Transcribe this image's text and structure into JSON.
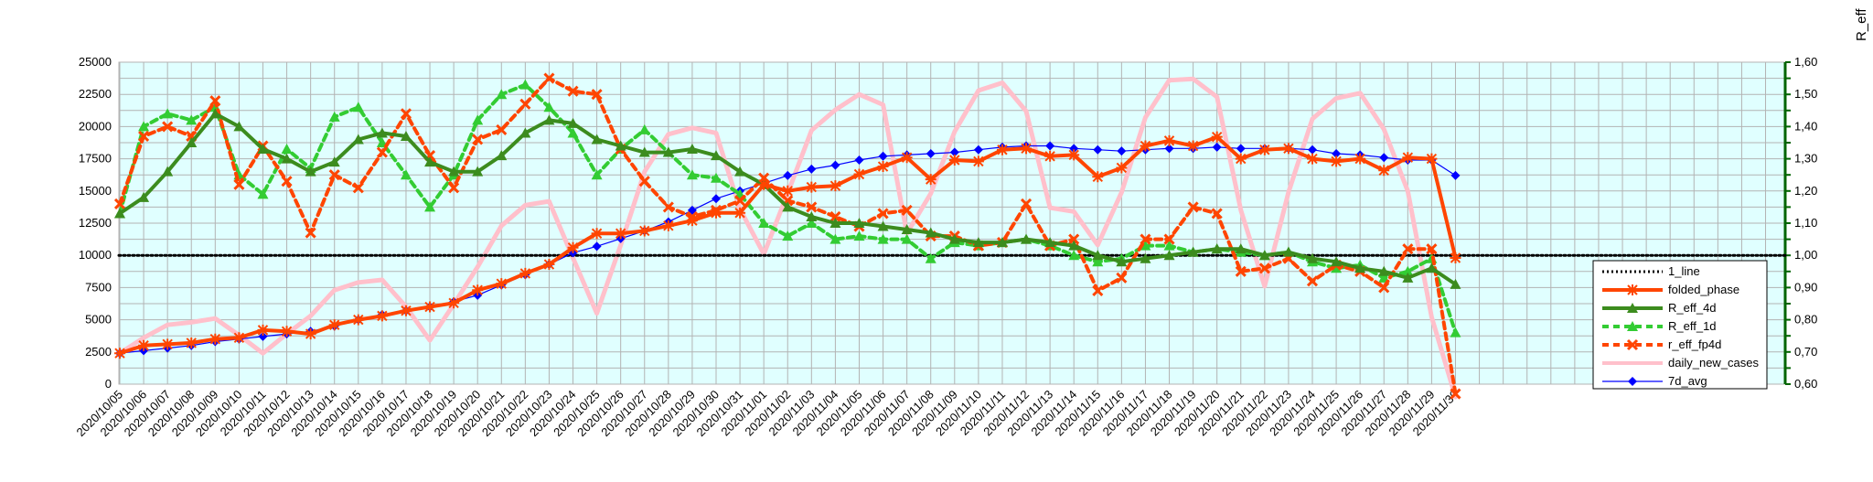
{
  "chart_data": {
    "type": "line",
    "y2label": "R_eff",
    "ylim": [
      0,
      25000
    ],
    "y2lim": [
      0.6,
      1.6
    ],
    "yticks": [
      "0",
      "2500",
      "5000",
      "7500",
      "10000",
      "12500",
      "15000",
      "17500",
      "20000",
      "22500",
      "25000"
    ],
    "y2ticks": [
      "0,60",
      "0,70",
      "0,80",
      "0,90",
      "1,00",
      "1,10",
      "1,20",
      "1,30",
      "1,40",
      "1,50",
      "1,60"
    ],
    "grid": true,
    "legend_position": "right",
    "categories": [
      "2020/10/05",
      "2020/10/06",
      "2020/10/07",
      "2020/10/08",
      "2020/10/09",
      "2020/10/10",
      "2020/10/11",
      "2020/10/12",
      "2020/10/13",
      "2020/10/14",
      "2020/10/15",
      "2020/10/16",
      "2020/10/17",
      "2020/10/18",
      "2020/10/19",
      "2020/10/20",
      "2020/10/21",
      "2020/10/22",
      "2020/10/23",
      "2020/10/24",
      "2020/10/25",
      "2020/10/26",
      "2020/10/27",
      "2020/10/28",
      "2020/10/29",
      "2020/10/30",
      "2020/10/31",
      "2020/11/01",
      "2020/11/02",
      "2020/11/03",
      "2020/11/04",
      "2020/11/05",
      "2020/11/06",
      "2020/11/07",
      "2020/11/08",
      "2020/11/09",
      "2020/11/10",
      "2020/11/11",
      "2020/11/12",
      "2020/11/13",
      "2020/11/14",
      "2020/11/15",
      "2020/11/16",
      "2020/11/17",
      "2020/11/18",
      "2020/11/19",
      "2020/11/20",
      "2020/11/21",
      "2020/11/22",
      "2020/11/23",
      "2020/11/24",
      "2020/11/25",
      "2020/11/26",
      "2020/11/27",
      "2020/11/28",
      "2020/11/29",
      "2020/11/30"
    ],
    "series": [
      {
        "name": "1_line",
        "axis": "right",
        "color": "#000000",
        "style": "dotted",
        "marker": "none",
        "values": [
          1,
          1,
          1,
          1,
          1,
          1,
          1,
          1,
          1,
          1,
          1,
          1,
          1,
          1,
          1,
          1,
          1,
          1,
          1,
          1,
          1,
          1,
          1,
          1,
          1,
          1,
          1,
          1,
          1,
          1,
          1,
          1,
          1,
          1,
          1,
          1,
          1,
          1,
          1,
          1,
          1,
          1,
          1,
          1,
          1,
          1,
          1,
          1,
          1,
          1,
          1,
          1,
          1,
          1,
          1,
          1,
          1
        ]
      },
      {
        "name": "folded_phase",
        "axis": "left",
        "color": "#ff4500",
        "style": "solid",
        "marker": "star",
        "values": [
          2400,
          3000,
          3100,
          3200,
          3500,
          3600,
          4200,
          4100,
          3900,
          4600,
          5000,
          5300,
          5700,
          6000,
          6300,
          7300,
          7800,
          8600,
          9300,
          10600,
          11700,
          11700,
          11900,
          12300,
          12700,
          13300,
          13300,
          15500,
          15000,
          15300,
          15400,
          16300,
          16900,
          17600,
          15900,
          17400,
          17300,
          18200,
          18300,
          17700,
          17800,
          16100,
          16800,
          18500,
          18900,
          18500,
          19200,
          17500,
          18200,
          18300,
          17500,
          17300,
          17500,
          16600,
          17600,
          17500,
          9800
        ]
      },
      {
        "name": "R_eff_4d",
        "axis": "right",
        "color": "#3c8c1e",
        "style": "solid",
        "marker": "triangle",
        "values": [
          1.13,
          1.18,
          1.26,
          1.35,
          1.44,
          1.4,
          1.33,
          1.3,
          1.26,
          1.29,
          1.36,
          1.38,
          1.37,
          1.29,
          1.26,
          1.26,
          1.31,
          1.38,
          1.42,
          1.41,
          1.36,
          1.34,
          1.32,
          1.32,
          1.33,
          1.31,
          1.26,
          1.22,
          1.15,
          1.12,
          1.1,
          1.1,
          1.09,
          1.08,
          1.07,
          1.05,
          1.04,
          1.04,
          1.05,
          1.04,
          1.03,
          1.0,
          0.98,
          0.99,
          1.0,
          1.01,
          1.02,
          1.02,
          1.0,
          1.01,
          0.99,
          0.98,
          0.96,
          0.95,
          0.93,
          0.96,
          0.91
        ]
      },
      {
        "name": "R_eff_1d",
        "axis": "right",
        "color": "#33cc33",
        "style": "dashed",
        "marker": "triangle",
        "values": [
          1.13,
          1.4,
          1.44,
          1.42,
          1.46,
          1.25,
          1.19,
          1.33,
          1.27,
          1.43,
          1.46,
          1.35,
          1.25,
          1.15,
          1.25,
          1.42,
          1.5,
          1.53,
          1.46,
          1.38,
          1.25,
          1.33,
          1.39,
          1.32,
          1.25,
          1.24,
          1.19,
          1.1,
          1.06,
          1.1,
          1.05,
          1.06,
          1.05,
          1.05,
          0.99,
          1.04,
          1.03,
          1.04,
          1.05,
          1.03,
          1.0,
          0.98,
          0.99,
          1.03,
          1.03,
          1.01,
          1.02,
          1.01,
          1.0,
          1.01,
          0.98,
          0.96,
          0.97,
          0.93,
          0.95,
          0.99,
          0.76
        ]
      },
      {
        "name": "r_eff_fp4d",
        "axis": "right",
        "color": "#ff4500",
        "style": "dashed",
        "marker": "x",
        "values": [
          1.16,
          1.37,
          1.4,
          1.37,
          1.48,
          1.22,
          1.34,
          1.23,
          1.07,
          1.25,
          1.21,
          1.32,
          1.44,
          1.31,
          1.21,
          1.36,
          1.39,
          1.47,
          1.55,
          1.51,
          1.5,
          1.33,
          1.23,
          1.15,
          1.12,
          1.14,
          1.17,
          1.24,
          1.17,
          1.15,
          1.12,
          1.09,
          1.13,
          1.14,
          1.06,
          1.06,
          1.03,
          1.04,
          1.16,
          1.03,
          1.05,
          0.89,
          0.93,
          1.05,
          1.05,
          1.15,
          1.13,
          0.95,
          0.96,
          0.99,
          0.92,
          0.97,
          0.95,
          0.9,
          1.02,
          1.02,
          0.57
        ]
      },
      {
        "name": "daily_new_cases",
        "axis": "left",
        "color": "#ffc0cb",
        "style": "solid",
        "marker": "none",
        "values": [
          2400,
          3600,
          4600,
          4800,
          5100,
          3800,
          2400,
          3900,
          5300,
          7300,
          7900,
          8100,
          6000,
          3400,
          6200,
          9100,
          12300,
          13900,
          14200,
          9800,
          5500,
          10800,
          16500,
          19400,
          19900,
          19500,
          13600,
          10100,
          14800,
          19700,
          21300,
          22500,
          21700,
          11700,
          14800,
          19600,
          22800,
          23400,
          21200,
          13700,
          13400,
          10800,
          14900,
          20700,
          23600,
          23700,
          22300,
          13500,
          7600,
          14900,
          20600,
          22200,
          22600,
          19800,
          15000,
          5200,
          -1000
        ]
      },
      {
        "name": "7d_avg",
        "axis": "left",
        "color": "#0000ff",
        "style": "solid",
        "marker": "diamond",
        "values": [
          2400,
          2600,
          2800,
          3000,
          3300,
          3500,
          3700,
          3900,
          4100,
          4500,
          5000,
          5400,
          5700,
          6000,
          6400,
          6900,
          7700,
          8500,
          9300,
          10200,
          10700,
          11300,
          11900,
          12600,
          13500,
          14400,
          15000,
          15600,
          16200,
          16700,
          17000,
          17400,
          17700,
          17800,
          17900,
          18000,
          18200,
          18400,
          18500,
          18500,
          18300,
          18200,
          18100,
          18200,
          18300,
          18300,
          18400,
          18300,
          18300,
          18300,
          18200,
          17900,
          17800,
          17600,
          17400,
          17400,
          16200
        ]
      }
    ]
  }
}
